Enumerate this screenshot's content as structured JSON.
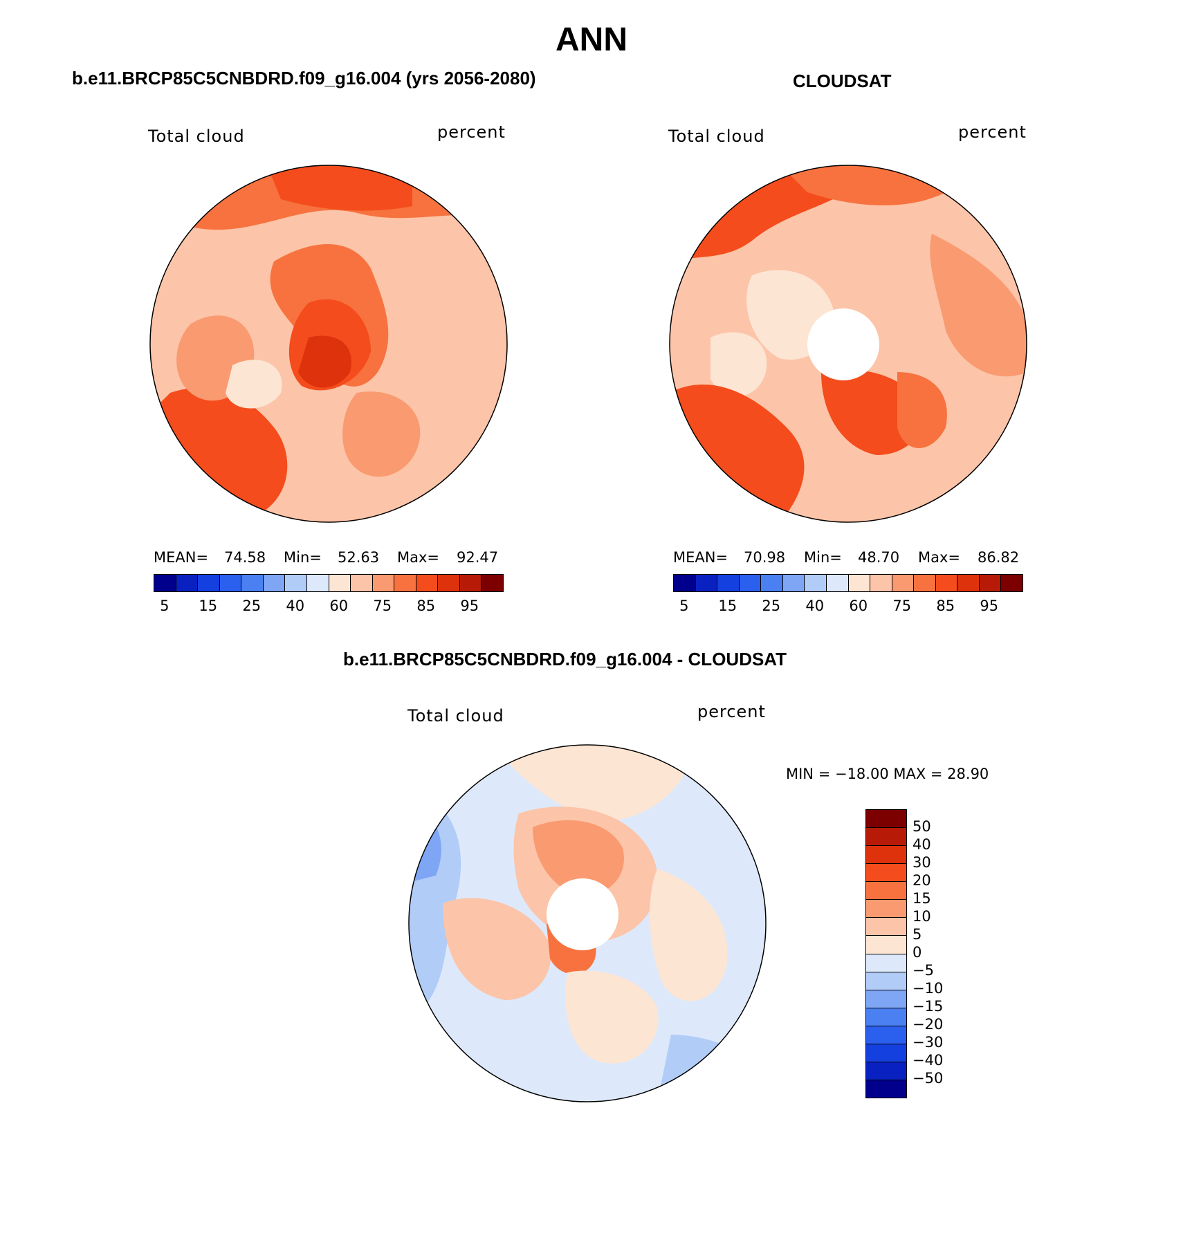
{
  "figure": {
    "title": "ANN"
  },
  "panels": [
    {
      "title": "b.e11.BRCP85C5CNBDRD.f09_g16.004 (yrs 2056-2080)",
      "left_label": "Total cloud",
      "right_label": "percent",
      "stats": {
        "mean_label": "MEAN=",
        "mean": "74.58",
        "min_label": "Min=",
        "min": "52.63",
        "max_label": "Max=",
        "max": "92.47"
      }
    },
    {
      "title": "CLOUDSAT",
      "left_label": "Total cloud",
      "right_label": "percent",
      "stats": {
        "mean_label": "MEAN=",
        "mean": "70.98",
        "min_label": "Min=",
        "min": "48.70",
        "max_label": "Max=",
        "max": "86.82"
      }
    },
    {
      "title": "b.e11.BRCP85C5CNBDRD.f09_g16.004 - CLOUDSAT",
      "left_label": "Total cloud",
      "right_label": "percent",
      "stats": {
        "minmax": "MIN = −18.00 MAX =   28.90"
      }
    }
  ],
  "colorbar_abs": {
    "tick_labels": [
      "5",
      "15",
      "25",
      "40",
      "60",
      "75",
      "85",
      "95"
    ],
    "colors": [
      "#00008c",
      "#0a21c2",
      "#1440e0",
      "#2b5fee",
      "#4a80f2",
      "#7ea6f5",
      "#b2ccf8",
      "#dde9fb",
      "#fde5d3",
      "#fcc4a8",
      "#f99a70",
      "#f7723f",
      "#f44c1c",
      "#dd320c",
      "#b71b08",
      "#7c0000"
    ]
  },
  "colorbar_diff": {
    "tick_labels": [
      "50",
      "40",
      "30",
      "20",
      "15",
      "10",
      "5",
      "0",
      "−5",
      "−10",
      "−15",
      "−20",
      "−30",
      "−40",
      "−50"
    ],
    "colors": [
      "#7c0000",
      "#b71b08",
      "#dd320c",
      "#f44c1c",
      "#f7723f",
      "#f99a70",
      "#fcc4a8",
      "#fde5d3",
      "#dde9fb",
      "#b2ccf8",
      "#7ea6f5",
      "#4a80f2",
      "#2b5fee",
      "#1440e0",
      "#0a21c2",
      "#00008c"
    ]
  }
}
